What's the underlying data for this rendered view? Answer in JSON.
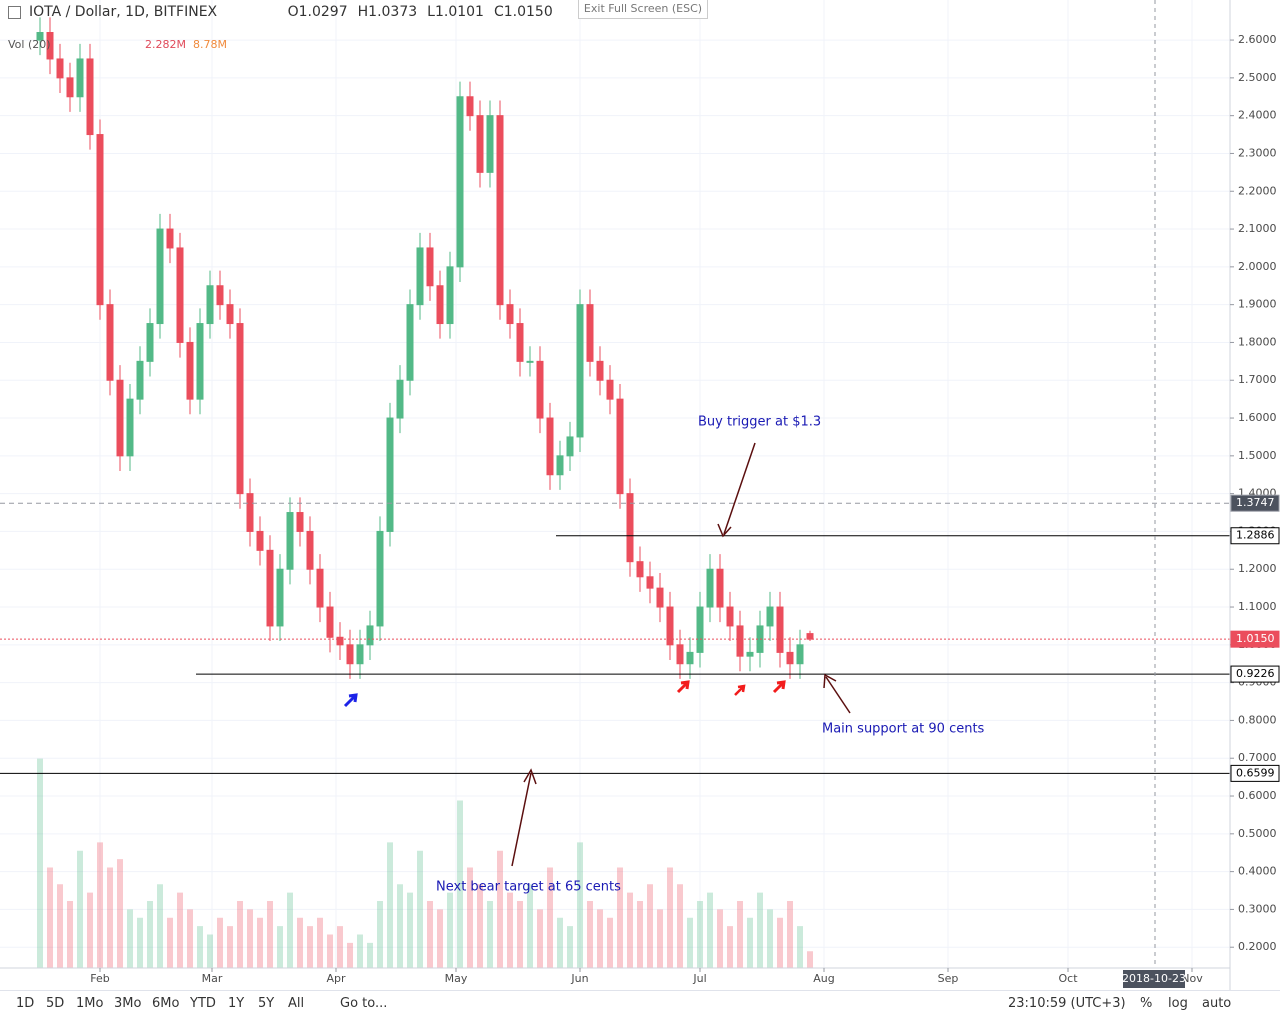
{
  "exit_label": "Exit Full Screen (ESC)",
  "toolbar": {
    "timeframes": [
      "1D",
      "5D",
      "1Mo",
      "3Mo",
      "6Mo",
      "YTD",
      "1Y",
      "5Y",
      "All"
    ],
    "goto": "Go to...",
    "clock": "23:10:59 (UTC+3)",
    "options": [
      "%",
      "log",
      "auto"
    ]
  },
  "chart_data": {
    "type": "candlestick",
    "title": "IOTA / Dollar, 1D, BITFINEX",
    "legend": {
      "labels": [
        "O",
        "H",
        "L",
        "C"
      ],
      "values": [
        "1.0297",
        "1.0373",
        "1.0101",
        "1.0150"
      ]
    },
    "volume_legend": {
      "label": "Vol (20)",
      "values": [
        "2.282M",
        "8.78M"
      ]
    },
    "up_color": "#53b987",
    "down_color": "#eb4d5c",
    "x": [
      16,
      18.5,
      21,
      23.5,
      26,
      28.5,
      31,
      33.5,
      36,
      38.5,
      41,
      43.5,
      46,
      48.5,
      51,
      53.5,
      56,
      58.5,
      61,
      63.5,
      66,
      68.5,
      71,
      73.5,
      76,
      78.5,
      81,
      83.5,
      86,
      88.5,
      91,
      93.5,
      96,
      98.5,
      101,
      103.5,
      106,
      108.5,
      111,
      113.5,
      116,
      118.5,
      121,
      123.5,
      126,
      128.5,
      131,
      133.5,
      136,
      138.5,
      141,
      143.5,
      146,
      148.5,
      151,
      153.5,
      156,
      158.5,
      161,
      163.5,
      166,
      168.5,
      171,
      173.5,
      176,
      178.5,
      181,
      183.5,
      186,
      188.5,
      191,
      193.5,
      196,
      198.5,
      201,
      203.5,
      206,
      208.5
    ],
    "open": [
      2.6,
      2.62,
      2.55,
      2.5,
      2.45,
      2.55,
      2.35,
      1.9,
      1.7,
      1.5,
      1.65,
      1.75,
      1.85,
      2.1,
      2.05,
      1.8,
      1.65,
      1.85,
      1.95,
      1.9,
      1.85,
      1.4,
      1.3,
      1.25,
      1.05,
      1.2,
      1.35,
      1.3,
      1.2,
      1.1,
      1.02,
      1.0,
      0.95,
      1.0,
      1.05,
      1.3,
      1.6,
      1.7,
      1.9,
      2.05,
      1.95,
      1.85,
      2.0,
      2.45,
      2.4,
      2.25,
      2.4,
      1.9,
      1.85,
      1.75,
      1.75,
      1.6,
      1.45,
      1.5,
      1.55,
      1.9,
      1.75,
      1.7,
      1.65,
      1.4,
      1.22,
      1.18,
      1.15,
      1.1,
      1.0,
      0.95,
      0.98,
      1.1,
      1.2,
      1.1,
      1.05,
      0.97,
      0.98,
      1.05,
      1.1,
      0.98,
      0.95,
      1.0297
    ],
    "high": [
      2.66,
      2.66,
      2.59,
      2.54,
      2.59,
      2.59,
      2.39,
      1.94,
      1.74,
      1.69,
      1.79,
      1.89,
      2.14,
      2.14,
      2.09,
      1.84,
      1.89,
      1.99,
      1.99,
      1.94,
      1.89,
      1.44,
      1.34,
      1.29,
      1.24,
      1.39,
      1.39,
      1.34,
      1.24,
      1.14,
      1.06,
      1.04,
      1.04,
      1.09,
      1.34,
      1.64,
      1.74,
      1.94,
      2.09,
      2.09,
      1.99,
      2.04,
      2.49,
      2.49,
      2.44,
      2.44,
      2.44,
      1.94,
      1.89,
      1.79,
      1.79,
      1.64,
      1.54,
      1.59,
      1.94,
      1.94,
      1.79,
      1.74,
      1.69,
      1.44,
      1.26,
      1.22,
      1.19,
      1.14,
      1.04,
      1.02,
      1.14,
      1.24,
      1.24,
      1.14,
      1.09,
      1.02,
      1.09,
      1.14,
      1.14,
      1.02,
      1.04,
      1.0373
    ],
    "low": [
      2.56,
      2.51,
      2.46,
      2.41,
      2.41,
      2.31,
      1.86,
      1.66,
      1.46,
      1.46,
      1.61,
      1.71,
      1.81,
      2.01,
      1.76,
      1.61,
      1.61,
      1.81,
      1.86,
      1.81,
      1.36,
      1.26,
      1.21,
      1.01,
      1.01,
      1.16,
      1.26,
      1.16,
      1.06,
      0.98,
      0.96,
      0.91,
      0.91,
      0.96,
      1.01,
      1.26,
      1.56,
      1.66,
      1.86,
      1.91,
      1.81,
      1.81,
      1.96,
      2.36,
      2.21,
      2.21,
      1.86,
      1.81,
      1.71,
      1.71,
      1.56,
      1.41,
      1.41,
      1.46,
      1.51,
      1.71,
      1.66,
      1.61,
      1.36,
      1.18,
      1.14,
      1.11,
      1.06,
      0.96,
      0.91,
      0.91,
      0.94,
      1.06,
      1.06,
      1.01,
      0.93,
      0.93,
      0.94,
      1.01,
      0.94,
      0.91,
      0.91,
      1.0101
    ],
    "close": [
      2.62,
      2.55,
      2.5,
      2.45,
      2.55,
      2.35,
      1.9,
      1.7,
      1.5,
      1.65,
      1.75,
      1.85,
      2.1,
      2.05,
      1.8,
      1.65,
      1.85,
      1.95,
      1.9,
      1.85,
      1.4,
      1.3,
      1.25,
      1.05,
      1.2,
      1.35,
      1.3,
      1.2,
      1.1,
      1.02,
      1.0,
      0.95,
      1.0,
      1.05,
      1.3,
      1.6,
      1.7,
      1.9,
      2.05,
      1.95,
      1.85,
      2.0,
      2.45,
      2.4,
      2.25,
      2.4,
      1.9,
      1.85,
      1.75,
      1.75,
      1.6,
      1.45,
      1.5,
      1.55,
      1.9,
      1.75,
      1.7,
      1.65,
      1.4,
      1.22,
      1.18,
      1.15,
      1.1,
      1.0,
      0.95,
      0.98,
      1.1,
      1.2,
      1.1,
      1.05,
      0.97,
      0.98,
      1.05,
      1.1,
      0.98,
      0.95,
      1.0,
      1.015
    ],
    "volume": [
      25,
      12,
      10,
      8,
      14,
      9,
      15,
      12,
      13,
      7,
      6,
      8,
      10,
      6,
      9,
      7,
      5,
      4,
      6,
      5,
      8,
      7,
      6,
      8,
      5,
      9,
      6,
      5,
      6,
      4,
      5,
      3,
      4,
      3,
      8,
      15,
      10,
      9,
      14,
      8,
      7,
      9,
      20,
      12,
      10,
      8,
      14,
      9,
      8,
      10,
      7,
      12,
      6,
      5,
      15,
      8,
      7,
      6,
      12,
      9,
      8,
      10,
      7,
      12,
      10,
      6,
      8,
      9,
      7,
      5,
      8,
      6,
      9,
      7,
      6,
      8,
      5,
      2
    ],
    "volume_lim": [
      0,
      32
    ],
    "xlim": [
      6,
      313.5
    ],
    "xticks": [
      {
        "value": 31,
        "label": "Feb"
      },
      {
        "value": 59,
        "label": "Mar"
      },
      {
        "value": 90,
        "label": "Apr"
      },
      {
        "value": 120,
        "label": "May"
      },
      {
        "value": 151,
        "label": "Jun"
      },
      {
        "value": 181,
        "label": "Jul"
      },
      {
        "value": 212,
        "label": "Aug"
      },
      {
        "value": 243,
        "label": "Sep"
      },
      {
        "value": 273,
        "label": "Oct"
      },
      {
        "value": 304,
        "label": "Nov"
      }
    ],
    "ylim": [
      0.145,
      2.706
    ],
    "yticks": [
      {
        "value": 0.2,
        "label": "0.2000"
      },
      {
        "value": 0.3,
        "label": "0.3000"
      },
      {
        "value": 0.4,
        "label": "0.4000"
      },
      {
        "value": 0.5,
        "label": "0.5000"
      },
      {
        "value": 0.6,
        "label": "0.6000"
      },
      {
        "value": 0.7,
        "label": "0.7000"
      },
      {
        "value": 0.8,
        "label": "0.8000"
      },
      {
        "value": 0.9,
        "label": "0.9000"
      },
      {
        "value": 1.0,
        "label": "1.0000"
      },
      {
        "value": 1.1,
        "label": "1.1000"
      },
      {
        "value": 1.2,
        "label": "1.2000"
      },
      {
        "value": 1.3,
        "label": "1.3000"
      },
      {
        "value": 1.4,
        "label": "1.4000"
      },
      {
        "value": 1.5,
        "label": "1.5000"
      },
      {
        "value": 1.6,
        "label": "1.6000"
      },
      {
        "value": 1.7,
        "label": "1.7000"
      },
      {
        "value": 1.8,
        "label": "1.8000"
      },
      {
        "value": 1.9,
        "label": "1.9000"
      },
      {
        "value": 2.0,
        "label": "2.0000"
      },
      {
        "value": 2.1,
        "label": "2.1000"
      },
      {
        "value": 2.2,
        "label": "2.2000"
      },
      {
        "value": 2.3,
        "label": "2.3000"
      },
      {
        "value": 2.4,
        "label": "2.4000"
      },
      {
        "value": 2.5,
        "label": "2.5000"
      },
      {
        "value": 2.6,
        "label": "2.6000"
      }
    ],
    "grid": true,
    "levels": [
      {
        "value": 1.3747,
        "style": "dashed",
        "color": "#9598a1"
      },
      {
        "value": 1.2886,
        "from": 145,
        "color": "#000000"
      },
      {
        "value": 1.015,
        "label": "1.0150",
        "style": "dotted",
        "color": "#eb4d5c"
      },
      {
        "value": 0.9226,
        "from": 55,
        "color": "#000000"
      },
      {
        "value": 0.6599,
        "color": "#000000"
      }
    ],
    "crosshair_date": "2018-10-23",
    "annotations": [
      "Buy trigger at $1.3",
      "Main support at 90 cents",
      "Next bear target at 65 cents"
    ]
  }
}
